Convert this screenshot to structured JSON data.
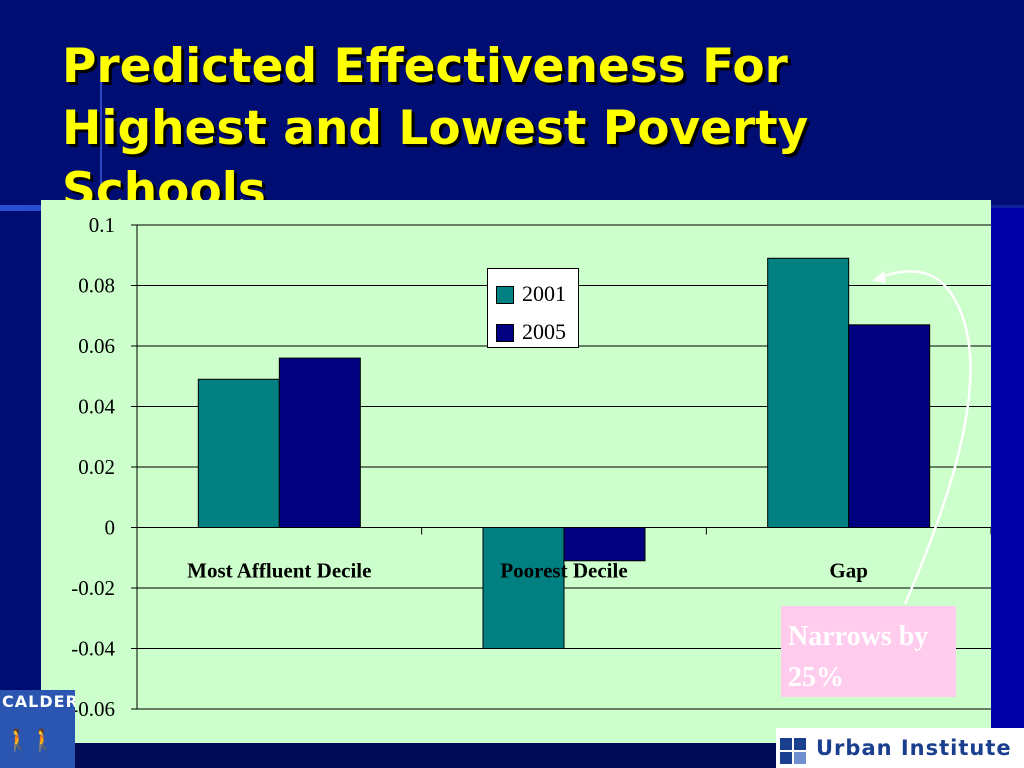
{
  "slide": {
    "title": "Predicted Effectiveness For Highest and Lowest Poverty Schools",
    "background": "#000e73",
    "title_color": "#ffff00"
  },
  "callout": {
    "text": "Narrows by 25%"
  },
  "logos": {
    "left_text": "CALDER",
    "right_text": "Urban Institute"
  },
  "chart_data": {
    "type": "bar",
    "categories": [
      "Most Affluent Decile",
      "Poorest Decile",
      "Gap"
    ],
    "series": [
      {
        "name": "2001",
        "values": [
          0.049,
          -0.04,
          0.089
        ],
        "color": "#008080"
      },
      {
        "name": "2005",
        "values": [
          0.056,
          -0.011,
          0.067
        ],
        "color": "#000080"
      }
    ],
    "ylim": [
      -0.06,
      0.1
    ],
    "yticks": [
      0.1,
      0.08,
      0.06,
      0.04,
      0.02,
      0,
      -0.02,
      -0.04,
      -0.06
    ],
    "ytick_labels": [
      "0.1",
      "0.08",
      "0.06",
      "0.04",
      "0.02",
      "0",
      "-0.02",
      "-0.04",
      "-0.06"
    ],
    "grid": true,
    "legend_position": "top-center",
    "plot_background": "#ccffcc"
  }
}
